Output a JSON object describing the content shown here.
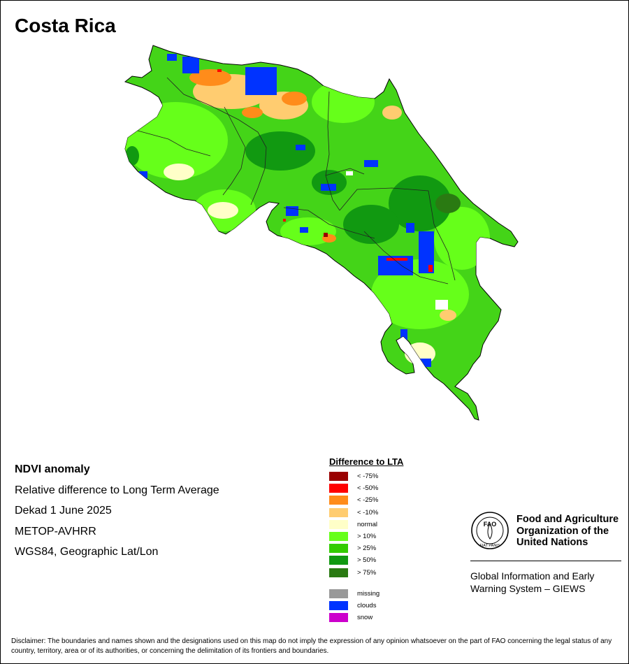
{
  "title": "Costa Rica",
  "info": {
    "product": "NDVI anomaly",
    "description": "Relative difference to Long Term Average",
    "period": "Dekad 1 June 2025",
    "sensor": "METOP-AVHRR",
    "projection": "WGS84, Geographic Lat/Lon"
  },
  "legend": {
    "title": "Difference to LTA",
    "classes": [
      {
        "label": "< -75%",
        "color": "#990000"
      },
      {
        "label": "< -50%",
        "color": "#ff0000"
      },
      {
        "label": "< -25%",
        "color": "#ff8c1a"
      },
      {
        "label": "< -10%",
        "color": "#ffcc70"
      },
      {
        "label": "normal",
        "color": "#ffffc8"
      },
      {
        "label": "> 10%",
        "color": "#66ff1a"
      },
      {
        "label": "> 25%",
        "color": "#33cc00"
      },
      {
        "label": "> 50%",
        "color": "#119911"
      },
      {
        "label": "> 75%",
        "color": "#2a7a12"
      }
    ],
    "extra": [
      {
        "label": "missing",
        "color": "#999999"
      },
      {
        "label": "clouds",
        "color": "#0033ff"
      },
      {
        "label": "snow",
        "color": "#cc00cc"
      }
    ]
  },
  "org": {
    "name_line1": "Food and Agriculture",
    "name_line2": "Organization of the",
    "name_line3": "United Nations",
    "logo_text": "FAO",
    "logo_motto": "FIAT PANIS",
    "system_line1": "Global Information and Early",
    "system_line2": "Warning System – GIEWS"
  },
  "disclaimer": "Disclaimer: The boundaries and names shown and the designations used on this map do not imply the expression of any opinion whatsoever on the part of FAO concerning the legal status of any country, territory, area or of its authorities, or concerning the delimitation of its frontiers and boundaries."
}
